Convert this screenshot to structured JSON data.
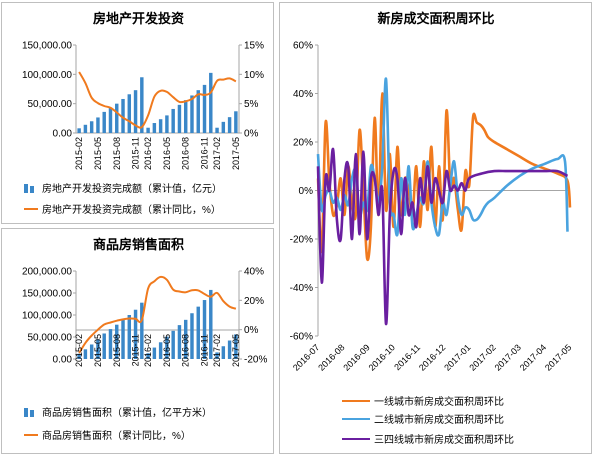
{
  "colors": {
    "bar": "#3a87c8",
    "orange": "#f07a1e",
    "blue": "#4aa3df",
    "purple": "#6a1fa0",
    "axis": "#a6a6a6"
  },
  "chart_data": [
    {
      "id": "investment",
      "type": "bar+line",
      "title": "房地产开发投资",
      "x": [
        "2015-02",
        "2015-03",
        "2015-04",
        "2015-05",
        "2015-06",
        "2015-07",
        "2015-08",
        "2015-09",
        "2015-10",
        "2015-11",
        "2015-12",
        "2016-02",
        "2016-03",
        "2016-04",
        "2016-05",
        "2016-06",
        "2016-07",
        "2016-08",
        "2016-09",
        "2016-10",
        "2016-11",
        "2016-12",
        "2017-02",
        "2017-03",
        "2017-04",
        "2017-05"
      ],
      "x_ticks": [
        "2015-02",
        "2015-05",
        "2015-08",
        "2015-11",
        "2016-02",
        "2016-05",
        "2016-08",
        "2016-11",
        "2017-02",
        "2017-05"
      ],
      "left_axis": {
        "ticks": [
          "0.00",
          "50,000.00",
          "100,000.00",
          "150,000.00"
        ],
        "min": 0,
        "max": 150000
      },
      "right_axis": {
        "ticks": [
          "0%",
          "5%",
          "10%",
          "15%"
        ],
        "min": 0,
        "max": 15
      },
      "series": [
        {
          "name": "房地产开发投资完成额（累计值，亿元）",
          "type": "bar",
          "axis": "left",
          "values": [
            8000,
            14000,
            20000,
            26500,
            36000,
            43000,
            50000,
            58000,
            66000,
            73000,
            95000,
            9000,
            17000,
            23500,
            30000,
            41000,
            48000,
            56000,
            64000,
            73000,
            82000,
            102500,
            9000,
            19000,
            27000,
            37000
          ]
        },
        {
          "name": "房地产开发投资完成额（累计同比，%）",
          "type": "line",
          "axis": "right",
          "values": [
            10.4,
            8.5,
            6.0,
            5.1,
            4.6,
            4.3,
            3.5,
            2.6,
            2.0,
            1.3,
            1.0,
            3.0,
            6.2,
            7.2,
            7.0,
            6.1,
            5.3,
            5.4,
            5.8,
            6.6,
            6.5,
            6.9,
            8.9,
            9.1,
            9.3,
            8.8
          ]
        }
      ]
    },
    {
      "id": "sales-area",
      "type": "bar+line",
      "title": "商品房销售面积",
      "x": [
        "2015-02",
        "2015-03",
        "2015-04",
        "2015-05",
        "2015-06",
        "2015-07",
        "2015-08",
        "2015-09",
        "2015-10",
        "2015-11",
        "2015-12",
        "2016-02",
        "2016-03",
        "2016-04",
        "2016-05",
        "2016-06",
        "2016-07",
        "2016-08",
        "2016-09",
        "2016-10",
        "2016-11",
        "2016-12",
        "2017-02",
        "2017-03",
        "2017-04",
        "2017-05"
      ],
      "x_ticks": [
        "2015-02",
        "2015-05",
        "2015-08",
        "2015-11",
        "2016-02",
        "2016-05",
        "2016-08",
        "2016-11",
        "2017-02",
        "2017-05"
      ],
      "left_axis": {
        "ticks": [
          "0.00",
          "50,000.00",
          "100,000.00",
          "150,000.00",
          "200,000.00"
        ],
        "min": 0,
        "max": 200000
      },
      "right_axis": {
        "ticks": [
          "-20%",
          "0%",
          "20%",
          "40%"
        ],
        "min": -20,
        "max": 40
      },
      "series": [
        {
          "name": "商品房销售面积（累计值，亿平方米）",
          "type": "bar",
          "axis": "left",
          "values": [
            12000,
            22000,
            33000,
            45000,
            58000,
            68000,
            78000,
            90000,
            100000,
            112000,
            128000,
            13000,
            26000,
            38000,
            51000,
            64000,
            77000,
            89000,
            104000,
            119000,
            134000,
            157000,
            15000,
            29000,
            42000,
            56000
          ]
        },
        {
          "name": "商品房销售面积（累计同比，%）",
          "type": "line",
          "axis": "right",
          "values": [
            -16.0,
            -9.0,
            -4.0,
            0.0,
            3.5,
            4.9,
            6.1,
            7.0,
            7.6,
            7.4,
            6.5,
            28.0,
            33.0,
            36.0,
            34.0,
            27.3,
            26.0,
            25.5,
            26.9,
            26.8,
            24.3,
            22.5,
            25.1,
            19.5,
            15.7,
            14.3
          ]
        }
      ]
    },
    {
      "id": "weekly-change",
      "type": "line",
      "title": "新房成交面积周环比",
      "x_ticks": [
        "2016-07",
        "2016-08",
        "2016-09",
        "2016-10",
        "2016-11",
        "2016-12",
        "2017-01",
        "2017-02",
        "2017-03",
        "2017-04",
        "2017-05"
      ],
      "axis": {
        "ticks": [
          "-60%",
          "-40%",
          "-20%",
          "0%",
          "20%",
          "40%",
          "60%"
        ],
        "min": -60,
        "max": 60
      },
      "series": [
        {
          "name": "一线城市新房成交面积周环比",
          "color": "orange",
          "x": [
            0,
            0.15,
            0.3,
            0.45,
            0.6,
            0.75,
            0.9,
            1.05,
            1.2,
            1.35,
            1.5,
            1.65,
            1.8,
            1.95,
            2.1,
            2.25,
            2.4,
            2.55,
            2.7,
            2.85,
            3.0,
            3.15,
            3.3,
            3.45,
            3.6,
            3.75,
            3.9,
            4.05,
            4.2,
            4.35,
            4.5,
            4.65,
            4.8,
            4.95,
            5.1,
            5.25,
            5.4,
            5.55,
            5.7,
            5.85,
            6.0,
            6.15,
            6.3,
            6.45,
            6.6,
            6.75,
            7.0,
            7.5,
            8.0,
            8.5,
            9.0,
            9.5,
            9.9,
            10.0
          ],
          "y": [
            5,
            -25,
            28,
            4,
            -10,
            -6,
            5,
            -10,
            10,
            -5,
            -10,
            25,
            0,
            -28,
            -15,
            30,
            -10,
            40,
            -8,
            15,
            -15,
            18,
            -10,
            5,
            0,
            -10,
            10,
            -15,
            12,
            -8,
            18,
            -15,
            10,
            -12,
            33,
            2,
            5,
            -8,
            -16,
            8,
            2,
            30,
            28,
            27,
            25,
            22,
            20,
            17,
            14,
            11,
            9,
            7,
            4,
            -7
          ]
        },
        {
          "name": "二线城市新房成交面积周环比",
          "color": "blue",
          "x": [
            0,
            0.15,
            0.3,
            0.45,
            0.6,
            0.75,
            0.9,
            1.05,
            1.2,
            1.35,
            1.5,
            1.65,
            1.8,
            1.95,
            2.1,
            2.25,
            2.4,
            2.55,
            2.7,
            2.85,
            3.0,
            3.15,
            3.3,
            3.45,
            3.6,
            3.75,
            3.9,
            4.05,
            4.2,
            4.35,
            4.5,
            4.65,
            4.8,
            4.95,
            5.1,
            5.25,
            5.4,
            5.55,
            5.7,
            5.85,
            6.0,
            6.15,
            6.3,
            6.45,
            6.6,
            6.75,
            7.0,
            7.5,
            8.0,
            8.5,
            9.0,
            9.5,
            9.8,
            9.9
          ],
          "y": [
            15,
            -8,
            -2,
            0,
            -5,
            -3,
            -8,
            -2,
            -6,
            5,
            8,
            -10,
            -5,
            -8,
            10,
            5,
            -5,
            10,
            46,
            -5,
            -10,
            -18,
            5,
            -10,
            10,
            -15,
            -10,
            -3,
            -5,
            12,
            -5,
            -15,
            -18,
            -5,
            -10,
            2,
            12,
            -3,
            -10,
            -7,
            -8,
            -12,
            -12,
            -10,
            -7,
            -5,
            -3,
            2,
            6,
            9,
            11,
            13,
            12,
            -17
          ]
        },
        {
          "name": "三四线城市新房成交面积周环比",
          "color": "purple",
          "x": [
            0,
            0.15,
            0.3,
            0.45,
            0.6,
            0.75,
            0.9,
            1.05,
            1.2,
            1.35,
            1.5,
            1.65,
            1.8,
            1.95,
            2.1,
            2.25,
            2.4,
            2.55,
            2.7,
            2.85,
            3.0,
            3.15,
            3.3,
            3.45,
            3.6,
            3.75,
            3.9,
            4.05,
            4.2,
            4.35,
            4.5,
            4.65,
            4.8,
            4.95,
            5.1,
            5.25,
            5.4,
            5.55,
            5.7,
            5.85,
            6.0,
            6.5,
            7.0,
            7.5,
            8.0,
            8.5,
            9.0,
            9.5,
            9.9
          ],
          "y": [
            10,
            -38,
            5,
            0,
            17,
            -12,
            -20,
            5,
            10,
            -20,
            15,
            -18,
            16,
            -20,
            5,
            5,
            -10,
            0,
            -55,
            -10,
            8,
            5,
            -18,
            5,
            -10,
            -5,
            -15,
            5,
            -5,
            10,
            -5,
            5,
            0,
            -5,
            8,
            0,
            2,
            0,
            3,
            0,
            5,
            7,
            8,
            8,
            8,
            8,
            8,
            8,
            6
          ]
        }
      ]
    }
  ]
}
